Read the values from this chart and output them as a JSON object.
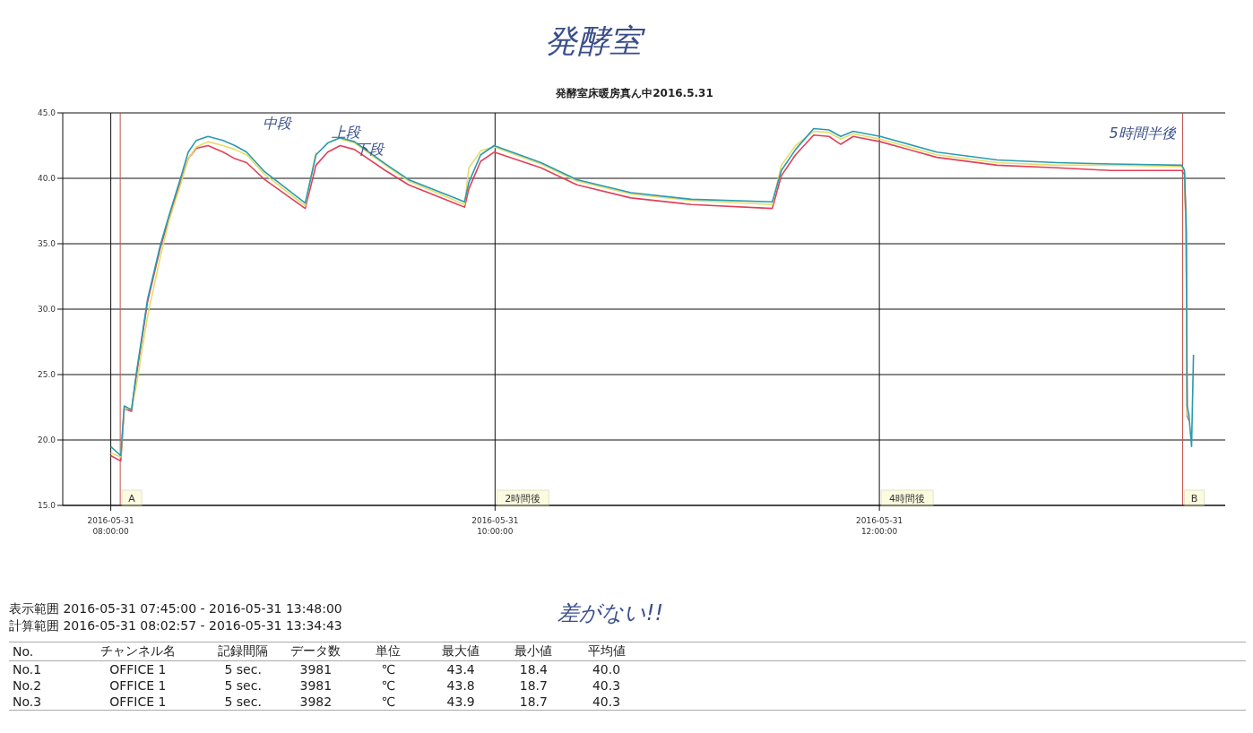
{
  "chart_data": {
    "type": "line",
    "title": "発酵室床暖房真ん中2016.5.31",
    "subtitle": "発酵室",
    "x": [
      "2016-05-31T08:00:00",
      "2016-05-31T08:03:07",
      "2016-05-31T08:04:12",
      "2016-05-31T08:06:29",
      "2016-05-31T08:07:52",
      "2016-05-31T08:11:31",
      "2016-05-31T08:15:29",
      "2016-05-31T08:18:14",
      "2016-05-31T08:21:54",
      "2016-05-31T08:24:11",
      "2016-05-31T08:26:42",
      "2016-05-31T08:30:22",
      "2016-05-31T08:35:06",
      "2016-05-31T08:38:46",
      "2016-05-31T08:42:25",
      "2016-05-31T08:48:04",
      "2016-05-31T09:00:43",
      "2016-05-31T09:04:05",
      "2016-05-31T09:07:44",
      "2016-05-31T09:11:38",
      "2016-05-31T09:16:08",
      "2016-05-31T09:25:44",
      "2016-05-31T09:33:00",
      "2016-05-31T09:50:28",
      "2016-05-31T09:51:50",
      "2016-05-31T09:55:30",
      "2016-05-31T09:59:42",
      "2016-05-31T10:14:20",
      "2016-05-31T10:25:34",
      "2016-05-31T10:42:25",
      "2016-05-31T11:01:16",
      "2016-05-31T11:26:35",
      "2016-05-31T11:29:24",
      "2016-05-31T11:33:50",
      "2016-05-31T11:39:29",
      "2016-05-31T11:44:17",
      "2016-05-31T11:47:56",
      "2016-05-31T11:51:50",
      "2016-05-31T12:00:18",
      "2016-05-31T12:18:00",
      "2016-05-31T12:36:50",
      "2016-05-31T12:55:23",
      "2016-05-31T13:12:14",
      "2016-05-31T13:34:26",
      "2016-05-31T13:35:17",
      "2016-05-31T13:35:49",
      "2016-05-31T13:36:07",
      "2016-05-31T13:36:40",
      "2016-05-31T13:37:30",
      "2016-05-31T13:38:06"
    ],
    "series": [
      {
        "color": "#e0405a",
        "values": [
          18.8,
          18.4,
          22.4,
          22.2,
          24.7,
          30.6,
          34.7,
          37.0,
          39.8,
          41.5,
          42.3,
          42.5,
          42.0,
          41.5,
          41.2,
          39.9,
          37.7,
          41.0,
          42.0,
          42.5,
          42.2,
          40.6,
          39.5,
          37.8,
          39.2,
          41.3,
          42.0,
          40.8,
          39.5,
          38.5,
          38.0,
          37.7,
          40.2,
          41.8,
          43.3,
          43.2,
          42.6,
          43.2,
          42.8,
          41.6,
          41.0,
          40.8,
          40.6,
          40.6,
          40.3,
          35.8,
          21.8,
          21.5,
          null,
          null
        ]
      },
      {
        "color": "#e6dc6a",
        "values": [
          19.0,
          18.7,
          22.4,
          22.4,
          24.0,
          29.5,
          34.0,
          36.8,
          39.6,
          41.5,
          42.4,
          42.8,
          42.5,
          42.2,
          41.8,
          40.3,
          37.9,
          42.0,
          null,
          43.0,
          42.7,
          41.0,
          39.8,
          38.0,
          40.8,
          42.1,
          42.4,
          41.1,
          39.8,
          38.8,
          38.3,
          38.0,
          41.0,
          42.5,
          43.6,
          43.5,
          43.0,
          43.4,
          43.0,
          41.8,
          41.2,
          41.0,
          41.0,
          40.9,
          40.5,
          36.0,
          22.0,
          21.6,
          null,
          null
        ]
      },
      {
        "color": "#2a9ab0",
        "values": [
          19.5,
          18.8,
          22.6,
          22.3,
          24.9,
          30.8,
          34.9,
          37.2,
          40.1,
          42.0,
          42.9,
          43.2,
          42.9,
          42.5,
          42.0,
          40.5,
          38.1,
          41.8,
          42.7,
          43.1,
          42.8,
          41.1,
          39.9,
          38.2,
          39.7,
          41.8,
          42.5,
          41.2,
          39.9,
          38.9,
          38.4,
          38.2,
          40.6,
          42.2,
          43.8,
          43.7,
          43.2,
          43.6,
          43.2,
          42.0,
          41.4,
          41.2,
          41.1,
          41.0,
          40.6,
          36.3,
          22.6,
          21.9,
          19.5,
          26.5
        ]
      }
    ],
    "xlim": [
      "2016-05-31T07:45",
      "2016-05-31T13:48"
    ],
    "xticks": [
      {
        "value": "2016-05-31T08:00",
        "label": "2016-05-31 08:00:00"
      },
      {
        "value": "2016-05-31T10:00",
        "label": "2016-05-31 10:00:00"
      },
      {
        "value": "2016-05-31T12:00",
        "label": "2016-05-31 12:00:00"
      }
    ],
    "ylim": [
      15,
      45
    ],
    "yticks": [
      {
        "value": 15,
        "label": "15.0"
      },
      {
        "value": 20,
        "label": "20.0"
      },
      {
        "value": 25,
        "label": "25.0"
      },
      {
        "value": 30,
        "label": "30.0"
      },
      {
        "value": 35,
        "label": "35.0"
      },
      {
        "value": 40,
        "label": "40.0"
      },
      {
        "value": 45,
        "label": "45.0"
      }
    ],
    "grid": "y",
    "marker": "none",
    "line_style": "solid",
    "ref_lines": [
      {
        "axis": "x",
        "value": "2016-05-31T08:02:57",
        "label": "A",
        "color": "#c0504d"
      },
      {
        "axis": "x",
        "value": "2016-05-31T13:34:43",
        "label": "B",
        "color": "#c0504d"
      },
      {
        "axis": "x",
        "value": "2016-05-31T08:00",
        "color": "#111111"
      },
      {
        "axis": "x",
        "value": "2016-05-31T10:00",
        "label": "2時間後",
        "color": "#111111"
      },
      {
        "axis": "x",
        "value": "2016-05-31T12:00",
        "label": "4時間後",
        "color": "#111111"
      }
    ],
    "annotations": [
      {
        "text": "中段",
        "x": "2016-05-31T09:04:05",
        "y": 41.8
      },
      {
        "text": "上段",
        "x": "2016-05-31T09:25:44",
        "y": 41.1
      },
      {
        "text": "下段",
        "x": "2016-05-31T09:33:00",
        "y": 39.8
      },
      {
        "text": "5時間半後",
        "x": "2016-05-31T13:34:26",
        "y": 41.0
      },
      "表示範囲 2016-05-31 07:45:00 - 2016-05-31 13:48:00",
      "計算範囲 2016-05-31 08:02:57 - 2016-05-31 13:34:43",
      "差がない!!",
      "No.\tチャンネル名\t記録間隔\tデータ数\t単位\t最大値\t最小値\t平均値",
      "No.1\tOFFICE 1\t5 sec.\t3981\t℃\t43.4\t18.4\t40.0",
      "No.2\tOFFICE 1\t5 sec.\t3981\t℃\t43.8\t18.7\t40.3",
      "No.3\tOFFICE 1\t5 sec.\t3982\t℃\t43.9\t18.7\t40.3"
    ]
  }
}
